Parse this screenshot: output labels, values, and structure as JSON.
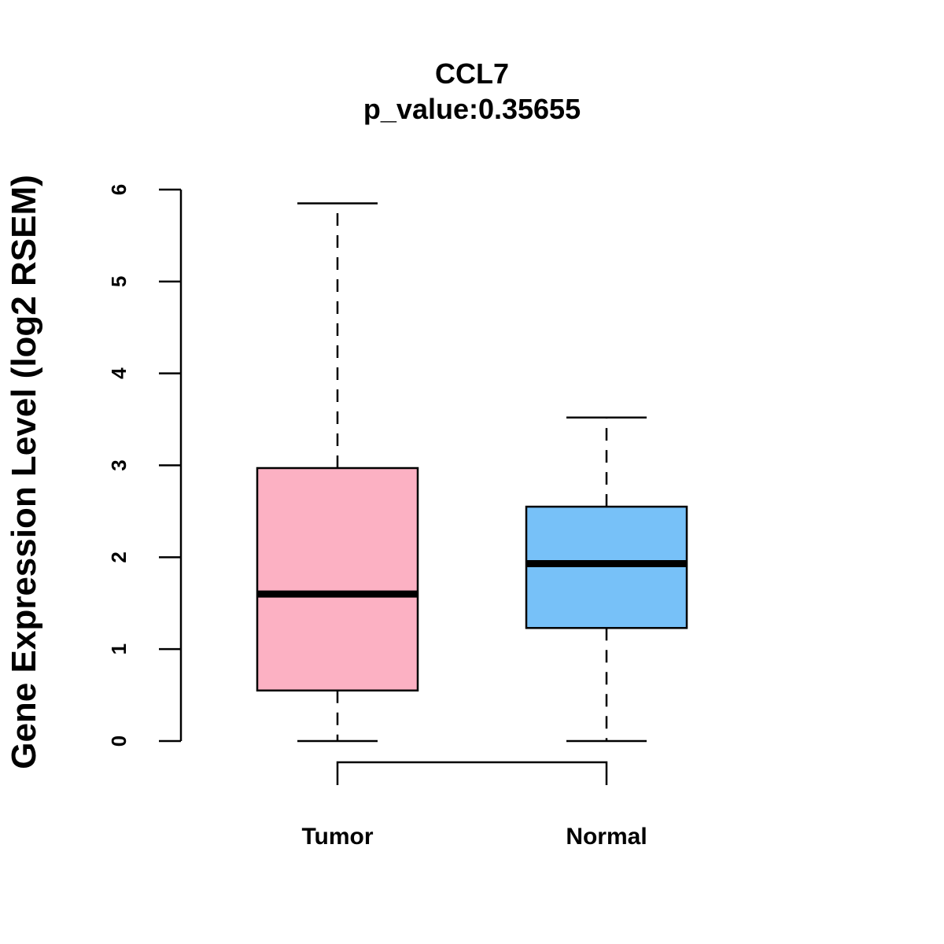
{
  "chart_data": {
    "type": "box",
    "title": "CCL7",
    "subtitle": "p_value:0.35655",
    "xlabel": "",
    "ylabel": "Gene Expression Level (log2 RSEM)",
    "ylim": [
      0,
      6
    ],
    "yticks": [
      0,
      1,
      2,
      3,
      4,
      5,
      6
    ],
    "grid": false,
    "legend": "none",
    "categories": [
      "Tumor",
      "Normal"
    ],
    "series": [
      {
        "name": "Tumor",
        "color": "#fcb1c3",
        "whisker_low": 0,
        "q1": 0.55,
        "median": 1.6,
        "q3": 2.97,
        "whisker_high": 5.85
      },
      {
        "name": "Normal",
        "color": "#77c1f8",
        "whisker_low": 0,
        "q1": 1.23,
        "median": 1.93,
        "q3": 2.55,
        "whisker_high": 3.52
      }
    ],
    "comparison_bracket": [
      "Tumor",
      "Normal"
    ]
  }
}
